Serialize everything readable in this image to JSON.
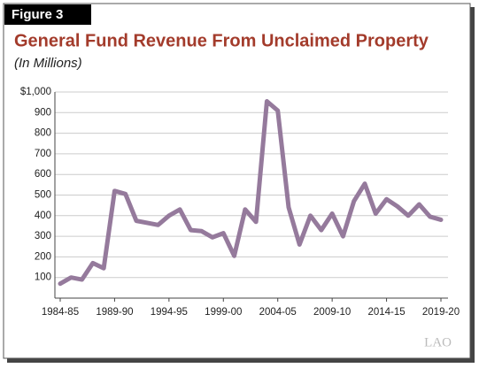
{
  "figure_label": "Figure 3",
  "logo": "LAO",
  "chart_data": {
    "type": "line",
    "title": "General Fund Revenue From Unclaimed Property",
    "subtitle": "(In Millions)",
    "categories": [
      "1984-85",
      null,
      null,
      null,
      null,
      "1989-90",
      null,
      null,
      null,
      null,
      "1994-95",
      null,
      null,
      null,
      null,
      "1999-00",
      null,
      null,
      null,
      null,
      "2004-05",
      null,
      null,
      null,
      null,
      "2009-10",
      null,
      null,
      null,
      null,
      "2014-15",
      null,
      null,
      null,
      null,
      "2019-20"
    ],
    "series": [
      {
        "name": "General Fund Revenue",
        "color": "#957a9c",
        "values": [
          70,
          100,
          90,
          170,
          145,
          520,
          505,
          375,
          365,
          355,
          400,
          430,
          330,
          325,
          295,
          315,
          205,
          430,
          370,
          955,
          910,
          440,
          260,
          400,
          330,
          410,
          300,
          470,
          555,
          410,
          480,
          445,
          400,
          455,
          395,
          380
        ]
      }
    ],
    "ylim": [
      0,
      1000
    ],
    "yticks": [
      100,
      200,
      300,
      400,
      500,
      600,
      700,
      800,
      900,
      {
        "value": 1000,
        "label": "$1,000"
      }
    ],
    "grid": true
  }
}
